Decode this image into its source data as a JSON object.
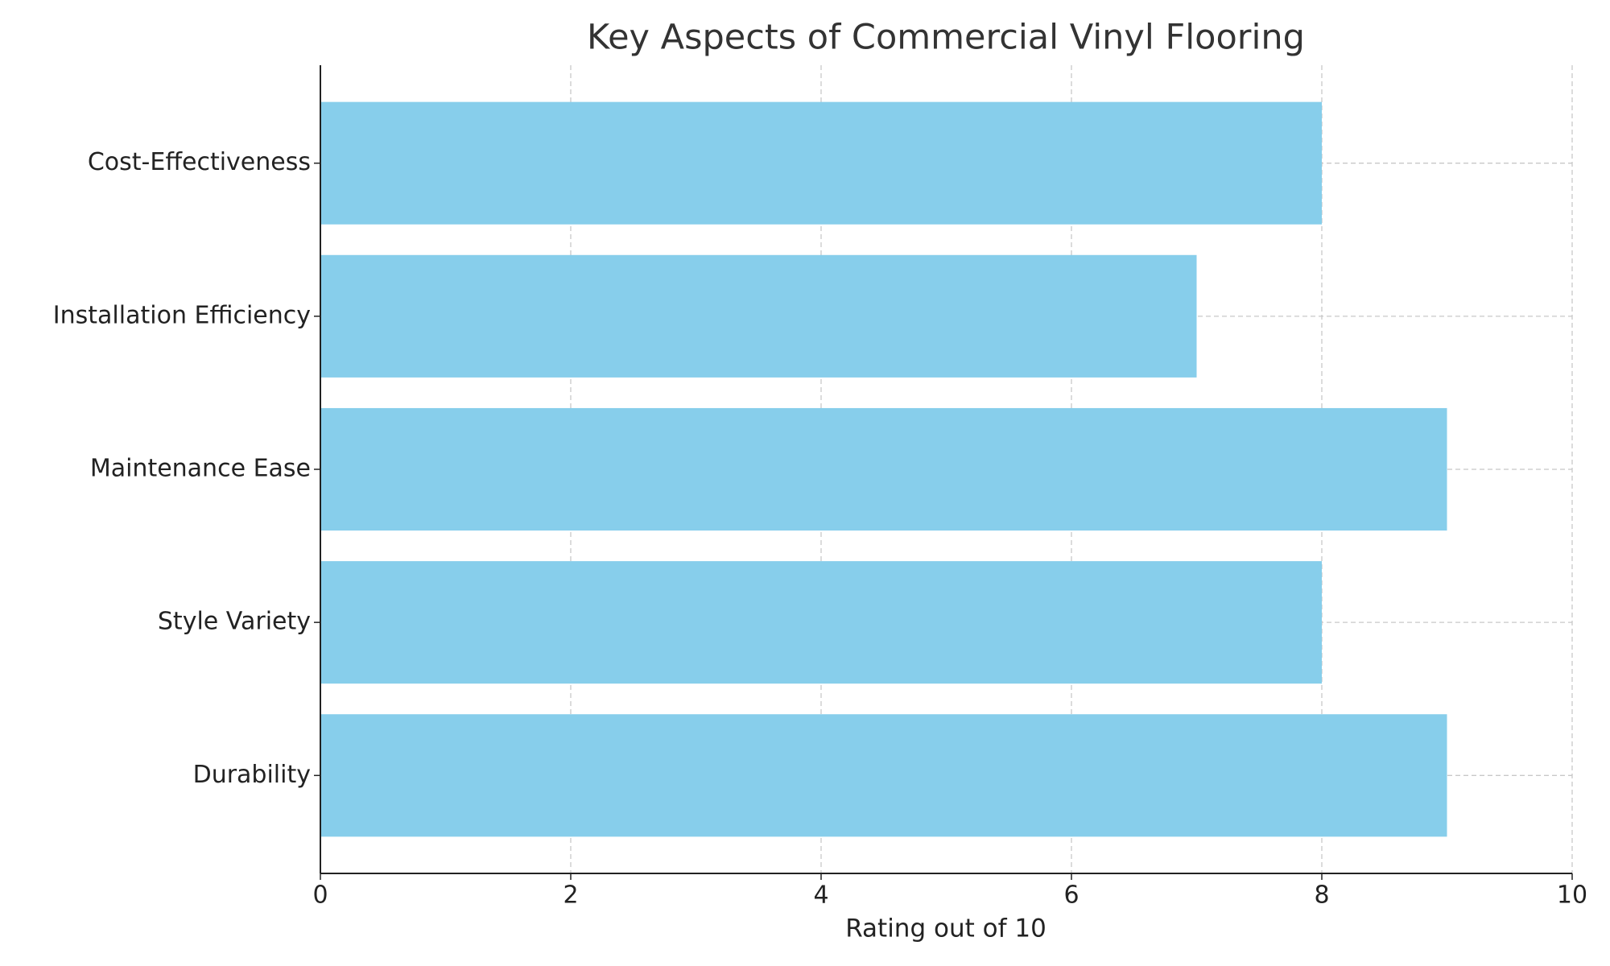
{
  "chart_data": {
    "type": "barh",
    "title": "Key Aspects of Commercial Vinyl Flooring",
    "xlabel": "Rating out of 10",
    "categories": [
      "Durability",
      "Style Variety",
      "Maintenance Ease",
      "Installation Efficiency",
      "Cost-Effectiveness"
    ],
    "values": [
      9,
      8,
      9,
      7,
      8
    ],
    "color": "#87ceeb",
    "xlim": [
      0,
      10
    ],
    "xticks": [
      0,
      2,
      4,
      6,
      8,
      10
    ],
    "grid": true
  }
}
